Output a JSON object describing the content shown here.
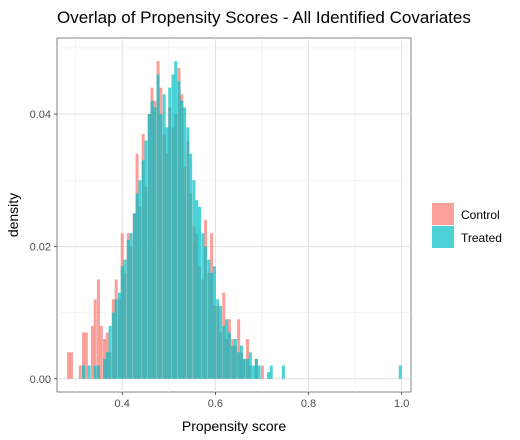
{
  "chart_data": {
    "type": "histogram",
    "title": "Overlap of Propensity Scores - All Identified Covariates",
    "xlabel": "Propensity score",
    "ylabel": "density",
    "xlim": [
      0.26,
      1.02
    ],
    "ylim": [
      -0.002,
      0.0515
    ],
    "x_ticks": [
      0.4,
      0.6,
      0.8,
      1.0
    ],
    "x_tick_labels": [
      "0.4",
      "0.6",
      "0.8",
      "1.0"
    ],
    "y_ticks": [
      0.0,
      0.02,
      0.04
    ],
    "y_tick_labels": [
      "0.00",
      "0.02",
      "0.04"
    ],
    "grid": true,
    "legend": {
      "position": "right",
      "entries": [
        "Control",
        "Treated"
      ]
    },
    "bin_width": 0.00645,
    "series": [
      {
        "name": "Control",
        "color": "#F8766D",
        "opacity": 0.7,
        "bins": [
          {
            "x": 0.285,
            "y": 0.004
          },
          {
            "x": 0.291,
            "y": 0.004
          },
          {
            "x": 0.31,
            "y": 0.002
          },
          {
            "x": 0.317,
            "y": 0.007
          },
          {
            "x": 0.323,
            "y": 0.007
          },
          {
            "x": 0.336,
            "y": 0.008
          },
          {
            "x": 0.342,
            "y": 0.012
          },
          {
            "x": 0.349,
            "y": 0.015
          },
          {
            "x": 0.355,
            "y": 0.008
          },
          {
            "x": 0.362,
            "y": 0.006
          },
          {
            "x": 0.368,
            "y": 0.007
          },
          {
            "x": 0.374,
            "y": 0.004
          },
          {
            "x": 0.381,
            "y": 0.012
          },
          {
            "x": 0.387,
            "y": 0.015
          },
          {
            "x": 0.394,
            "y": 0.012
          },
          {
            "x": 0.4,
            "y": 0.022
          },
          {
            "x": 0.406,
            "y": 0.016
          },
          {
            "x": 0.413,
            "y": 0.022
          },
          {
            "x": 0.419,
            "y": 0.02
          },
          {
            "x": 0.426,
            "y": 0.025
          },
          {
            "x": 0.432,
            "y": 0.034
          },
          {
            "x": 0.438,
            "y": 0.026
          },
          {
            "x": 0.445,
            "y": 0.037
          },
          {
            "x": 0.451,
            "y": 0.029
          },
          {
            "x": 0.458,
            "y": 0.04
          },
          {
            "x": 0.464,
            "y": 0.044
          },
          {
            "x": 0.47,
            "y": 0.042
          },
          {
            "x": 0.477,
            "y": 0.048
          },
          {
            "x": 0.483,
            "y": 0.044
          },
          {
            "x": 0.49,
            "y": 0.037
          },
          {
            "x": 0.496,
            "y": 0.034
          },
          {
            "x": 0.502,
            "y": 0.041
          },
          {
            "x": 0.509,
            "y": 0.038
          },
          {
            "x": 0.515,
            "y": 0.04
          },
          {
            "x": 0.522,
            "y": 0.047
          },
          {
            "x": 0.528,
            "y": 0.043
          },
          {
            "x": 0.534,
            "y": 0.032
          },
          {
            "x": 0.541,
            "y": 0.036
          },
          {
            "x": 0.547,
            "y": 0.028
          },
          {
            "x": 0.554,
            "y": 0.023
          },
          {
            "x": 0.56,
            "y": 0.022
          },
          {
            "x": 0.566,
            "y": 0.017
          },
          {
            "x": 0.573,
            "y": 0.015
          },
          {
            "x": 0.579,
            "y": 0.024
          },
          {
            "x": 0.586,
            "y": 0.016
          },
          {
            "x": 0.592,
            "y": 0.022
          },
          {
            "x": 0.598,
            "y": 0.011
          },
          {
            "x": 0.605,
            "y": 0.011
          },
          {
            "x": 0.611,
            "y": 0.007
          },
          {
            "x": 0.618,
            "y": 0.013
          },
          {
            "x": 0.624,
            "y": 0.006
          },
          {
            "x": 0.63,
            "y": 0.009
          },
          {
            "x": 0.637,
            "y": 0.006
          },
          {
            "x": 0.643,
            "y": 0.005
          },
          {
            "x": 0.65,
            "y": 0.009
          },
          {
            "x": 0.656,
            "y": 0.004
          },
          {
            "x": 0.662,
            "y": 0.003
          },
          {
            "x": 0.669,
            "y": 0.006
          },
          {
            "x": 0.675,
            "y": 0.002
          },
          {
            "x": 0.688,
            "y": 0.003
          },
          {
            "x": 0.701,
            "y": 0.002
          }
        ]
      },
      {
        "name": "Treated",
        "color": "#00BFC4",
        "opacity": 0.7,
        "bins": [
          {
            "x": 0.317,
            "y": 0.002
          },
          {
            "x": 0.329,
            "y": 0.002
          },
          {
            "x": 0.342,
            "y": 0.002
          },
          {
            "x": 0.349,
            "y": 0.002
          },
          {
            "x": 0.362,
            "y": 0.003
          },
          {
            "x": 0.368,
            "y": 0.004
          },
          {
            "x": 0.374,
            "y": 0.008
          },
          {
            "x": 0.381,
            "y": 0.01
          },
          {
            "x": 0.387,
            "y": 0.012
          },
          {
            "x": 0.394,
            "y": 0.013
          },
          {
            "x": 0.4,
            "y": 0.017
          },
          {
            "x": 0.406,
            "y": 0.018
          },
          {
            "x": 0.413,
            "y": 0.021
          },
          {
            "x": 0.419,
            "y": 0.022
          },
          {
            "x": 0.426,
            "y": 0.025
          },
          {
            "x": 0.432,
            "y": 0.028
          },
          {
            "x": 0.438,
            "y": 0.03
          },
          {
            "x": 0.445,
            "y": 0.033
          },
          {
            "x": 0.451,
            "y": 0.036
          },
          {
            "x": 0.458,
            "y": 0.04
          },
          {
            "x": 0.464,
            "y": 0.042
          },
          {
            "x": 0.47,
            "y": 0.041
          },
          {
            "x": 0.477,
            "y": 0.046
          },
          {
            "x": 0.483,
            "y": 0.04
          },
          {
            "x": 0.49,
            "y": 0.043
          },
          {
            "x": 0.496,
            "y": 0.038
          },
          {
            "x": 0.502,
            "y": 0.044
          },
          {
            "x": 0.509,
            "y": 0.046
          },
          {
            "x": 0.515,
            "y": 0.048
          },
          {
            "x": 0.522,
            "y": 0.045
          },
          {
            "x": 0.528,
            "y": 0.042
          },
          {
            "x": 0.534,
            "y": 0.041
          },
          {
            "x": 0.541,
            "y": 0.038
          },
          {
            "x": 0.547,
            "y": 0.034
          },
          {
            "x": 0.554,
            "y": 0.03
          },
          {
            "x": 0.56,
            "y": 0.027
          },
          {
            "x": 0.566,
            "y": 0.026
          },
          {
            "x": 0.573,
            "y": 0.022
          },
          {
            "x": 0.579,
            "y": 0.02
          },
          {
            "x": 0.586,
            "y": 0.018
          },
          {
            "x": 0.592,
            "y": 0.016
          },
          {
            "x": 0.598,
            "y": 0.017
          },
          {
            "x": 0.605,
            "y": 0.012
          },
          {
            "x": 0.611,
            "y": 0.011
          },
          {
            "x": 0.618,
            "y": 0.008
          },
          {
            "x": 0.624,
            "y": 0.009
          },
          {
            "x": 0.63,
            "y": 0.007
          },
          {
            "x": 0.637,
            "y": 0.005
          },
          {
            "x": 0.643,
            "y": 0.006
          },
          {
            "x": 0.65,
            "y": 0.004
          },
          {
            "x": 0.656,
            "y": 0.005
          },
          {
            "x": 0.662,
            "y": 0.003
          },
          {
            "x": 0.669,
            "y": 0.003
          },
          {
            "x": 0.675,
            "y": 0.004
          },
          {
            "x": 0.682,
            "y": 0.002
          },
          {
            "x": 0.688,
            "y": 0.003
          },
          {
            "x": 0.694,
            "y": 0.002
          },
          {
            "x": 0.714,
            "y": 0.001
          },
          {
            "x": 0.72,
            "y": 0.002
          },
          {
            "x": 0.746,
            "y": 0.002
          },
          {
            "x": 0.997,
            "y": 0.002
          }
        ]
      }
    ]
  }
}
